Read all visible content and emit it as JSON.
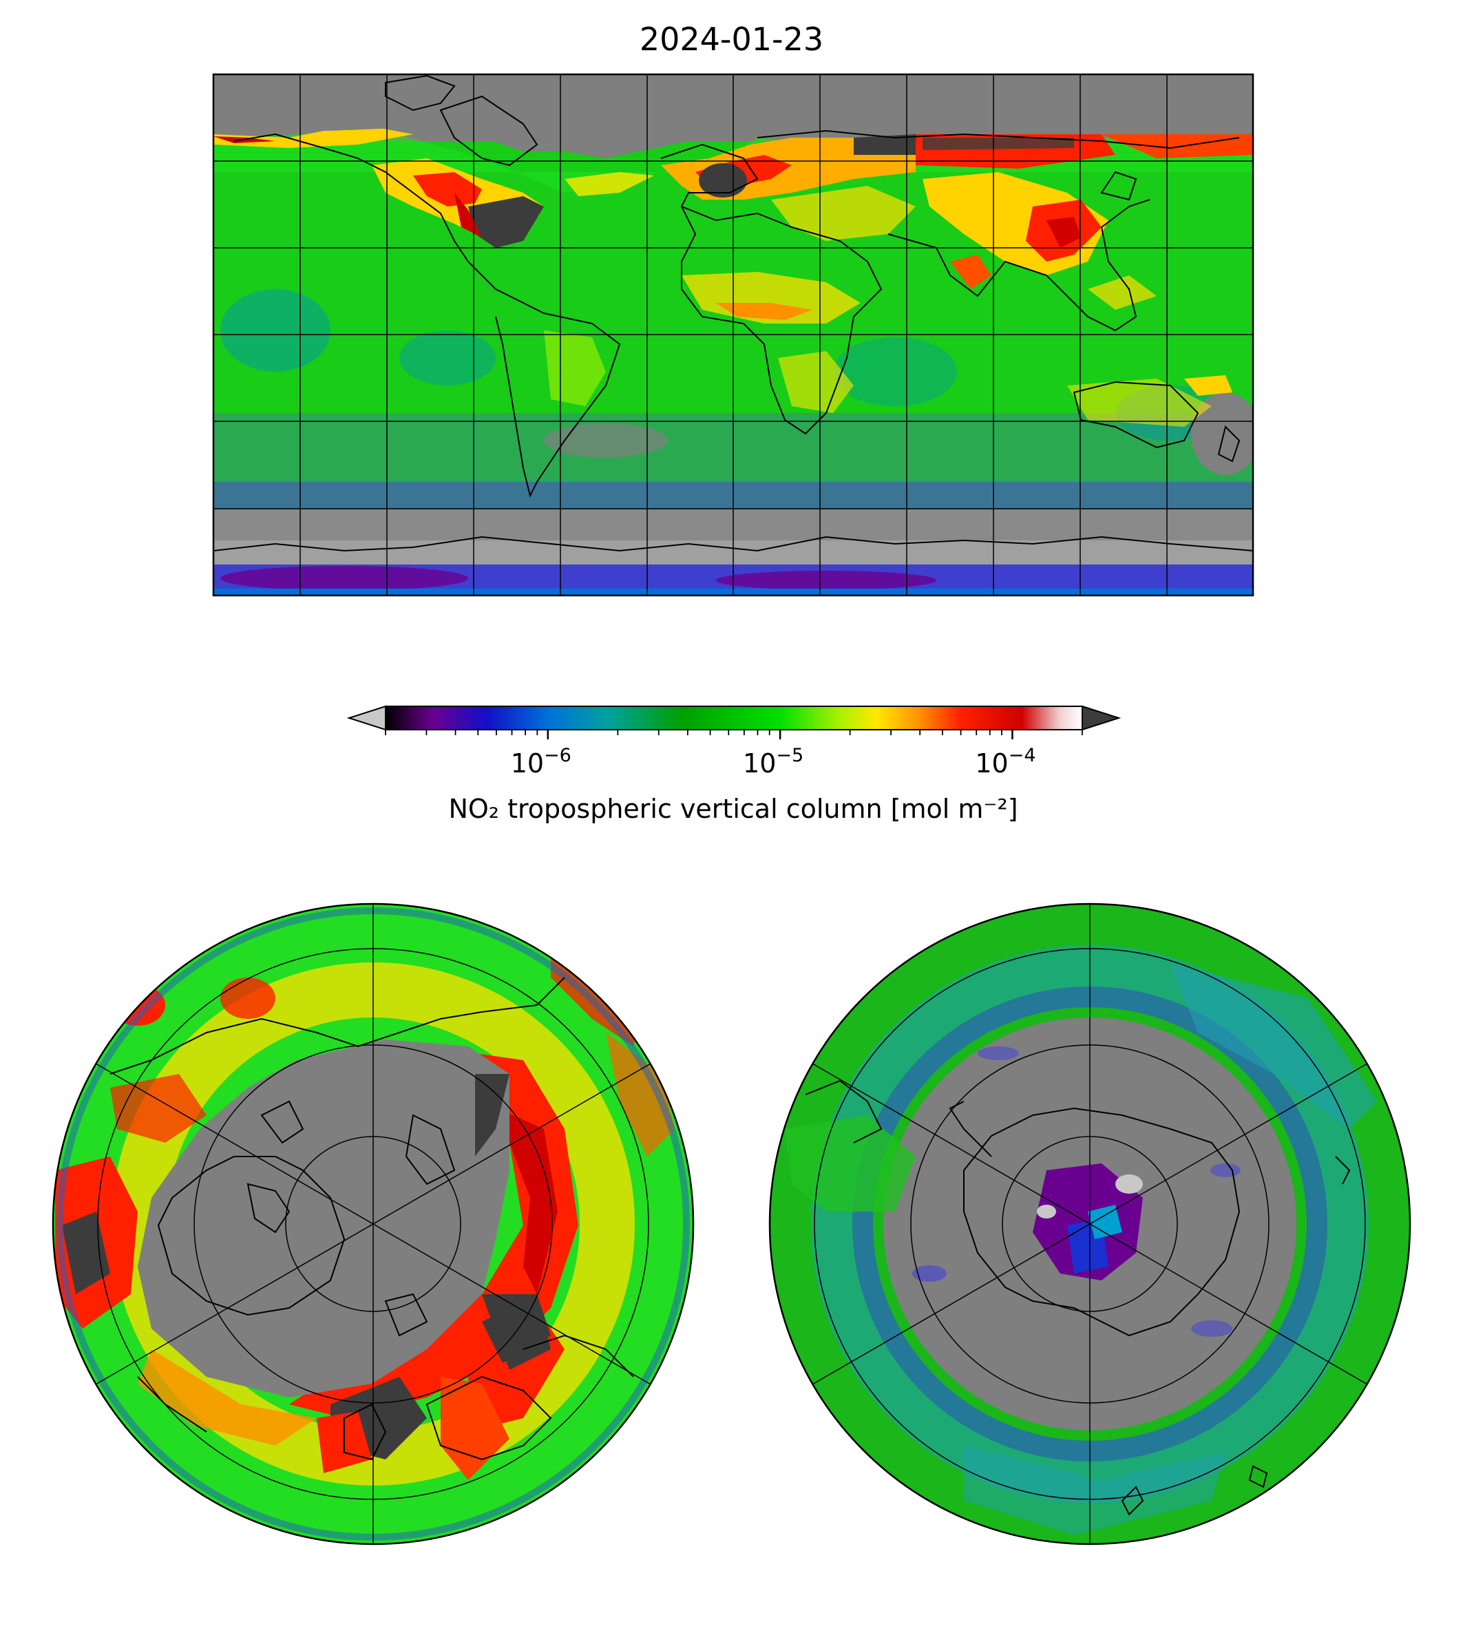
{
  "figure": {
    "title": "2024-01-23"
  },
  "colorbar": {
    "label": "NO₂ tropospheric vertical column [mol m⁻²]",
    "scale": "log",
    "range": [
      2e-07,
      0.0002
    ],
    "extend": "both",
    "under_color": "#c8c8c8",
    "over_color": "#3c3c3c",
    "ticks": [
      {
        "value": 1e-06,
        "base": "10",
        "exp": "−6"
      },
      {
        "value": 1e-05,
        "base": "10",
        "exp": "−5"
      },
      {
        "value": 0.0001,
        "base": "10",
        "exp": "−4"
      }
    ],
    "stops": [
      {
        "value": 2e-07,
        "color": "#000000"
      },
      {
        "value": 3.2e-07,
        "color": "#6a0090"
      },
      {
        "value": 5.5e-07,
        "color": "#1010c8"
      },
      {
        "value": 1e-06,
        "color": "#0070d8"
      },
      {
        "value": 1.8e-06,
        "color": "#00a0a0"
      },
      {
        "value": 3.8e-06,
        "color": "#00a000"
      },
      {
        "value": 1e-05,
        "color": "#00e000"
      },
      {
        "value": 1.8e-05,
        "color": "#aaf000"
      },
      {
        "value": 2.6e-05,
        "color": "#ffe800"
      },
      {
        "value": 4e-05,
        "color": "#ff9000"
      },
      {
        "value": 6e-05,
        "color": "#ff2000"
      },
      {
        "value": 0.00011,
        "color": "#d00000"
      },
      {
        "value": 0.00016,
        "color": "#f0d0d0"
      },
      {
        "value": 0.0002,
        "color": "#ffffff"
      }
    ]
  },
  "maps": [
    {
      "name": "global",
      "projection": "plate-carree",
      "extent": [
        -180,
        180,
        -90,
        90
      ],
      "grid_step_deg": 30
    },
    {
      "name": "arctic",
      "projection": "north-polar-stereographic",
      "boundary": "circle"
    },
    {
      "name": "antarctic",
      "projection": "south-polar-stereographic",
      "boundary": "circle"
    }
  ]
}
